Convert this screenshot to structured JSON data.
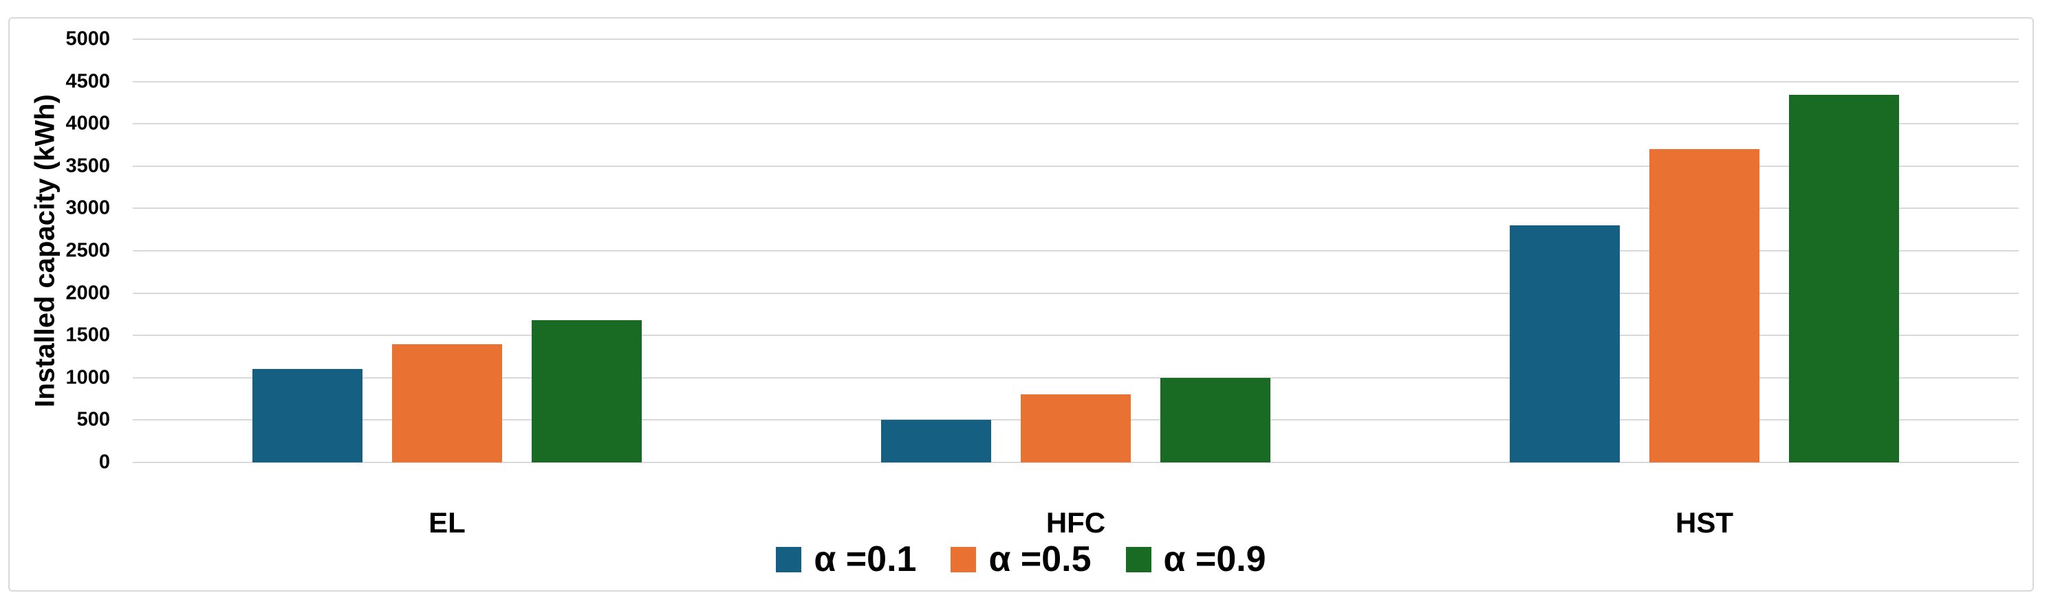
{
  "chart_data": {
    "type": "bar",
    "categories": [
      "EL",
      "HFC",
      "HST"
    ],
    "series": [
      {
        "name": "α =0.1",
        "color": "#156082",
        "values": [
          1100,
          500,
          2800
        ]
      },
      {
        "name": "α =0.5",
        "color": "#E97132",
        "values": [
          1400,
          800,
          3700
        ]
      },
      {
        "name": "α =0.9",
        "color": "#196B24",
        "values": [
          1680,
          1000,
          4340
        ]
      }
    ],
    "title": "",
    "xlabel": "",
    "ylabel": "Installed capacity (kWh)",
    "ylim": [
      0,
      5000
    ],
    "ytick_step": 500,
    "yticks": [
      "0",
      "500",
      "1000",
      "1500",
      "2000",
      "2500",
      "3000",
      "3500",
      "4000",
      "4500",
      "5000"
    ],
    "grid": true,
    "legend_position": "bottom",
    "colors": {
      "gridline": "#D9D9D9",
      "frame_border": "#D9D9D9",
      "background": "#FFFFFF",
      "text": "#000000"
    }
  }
}
